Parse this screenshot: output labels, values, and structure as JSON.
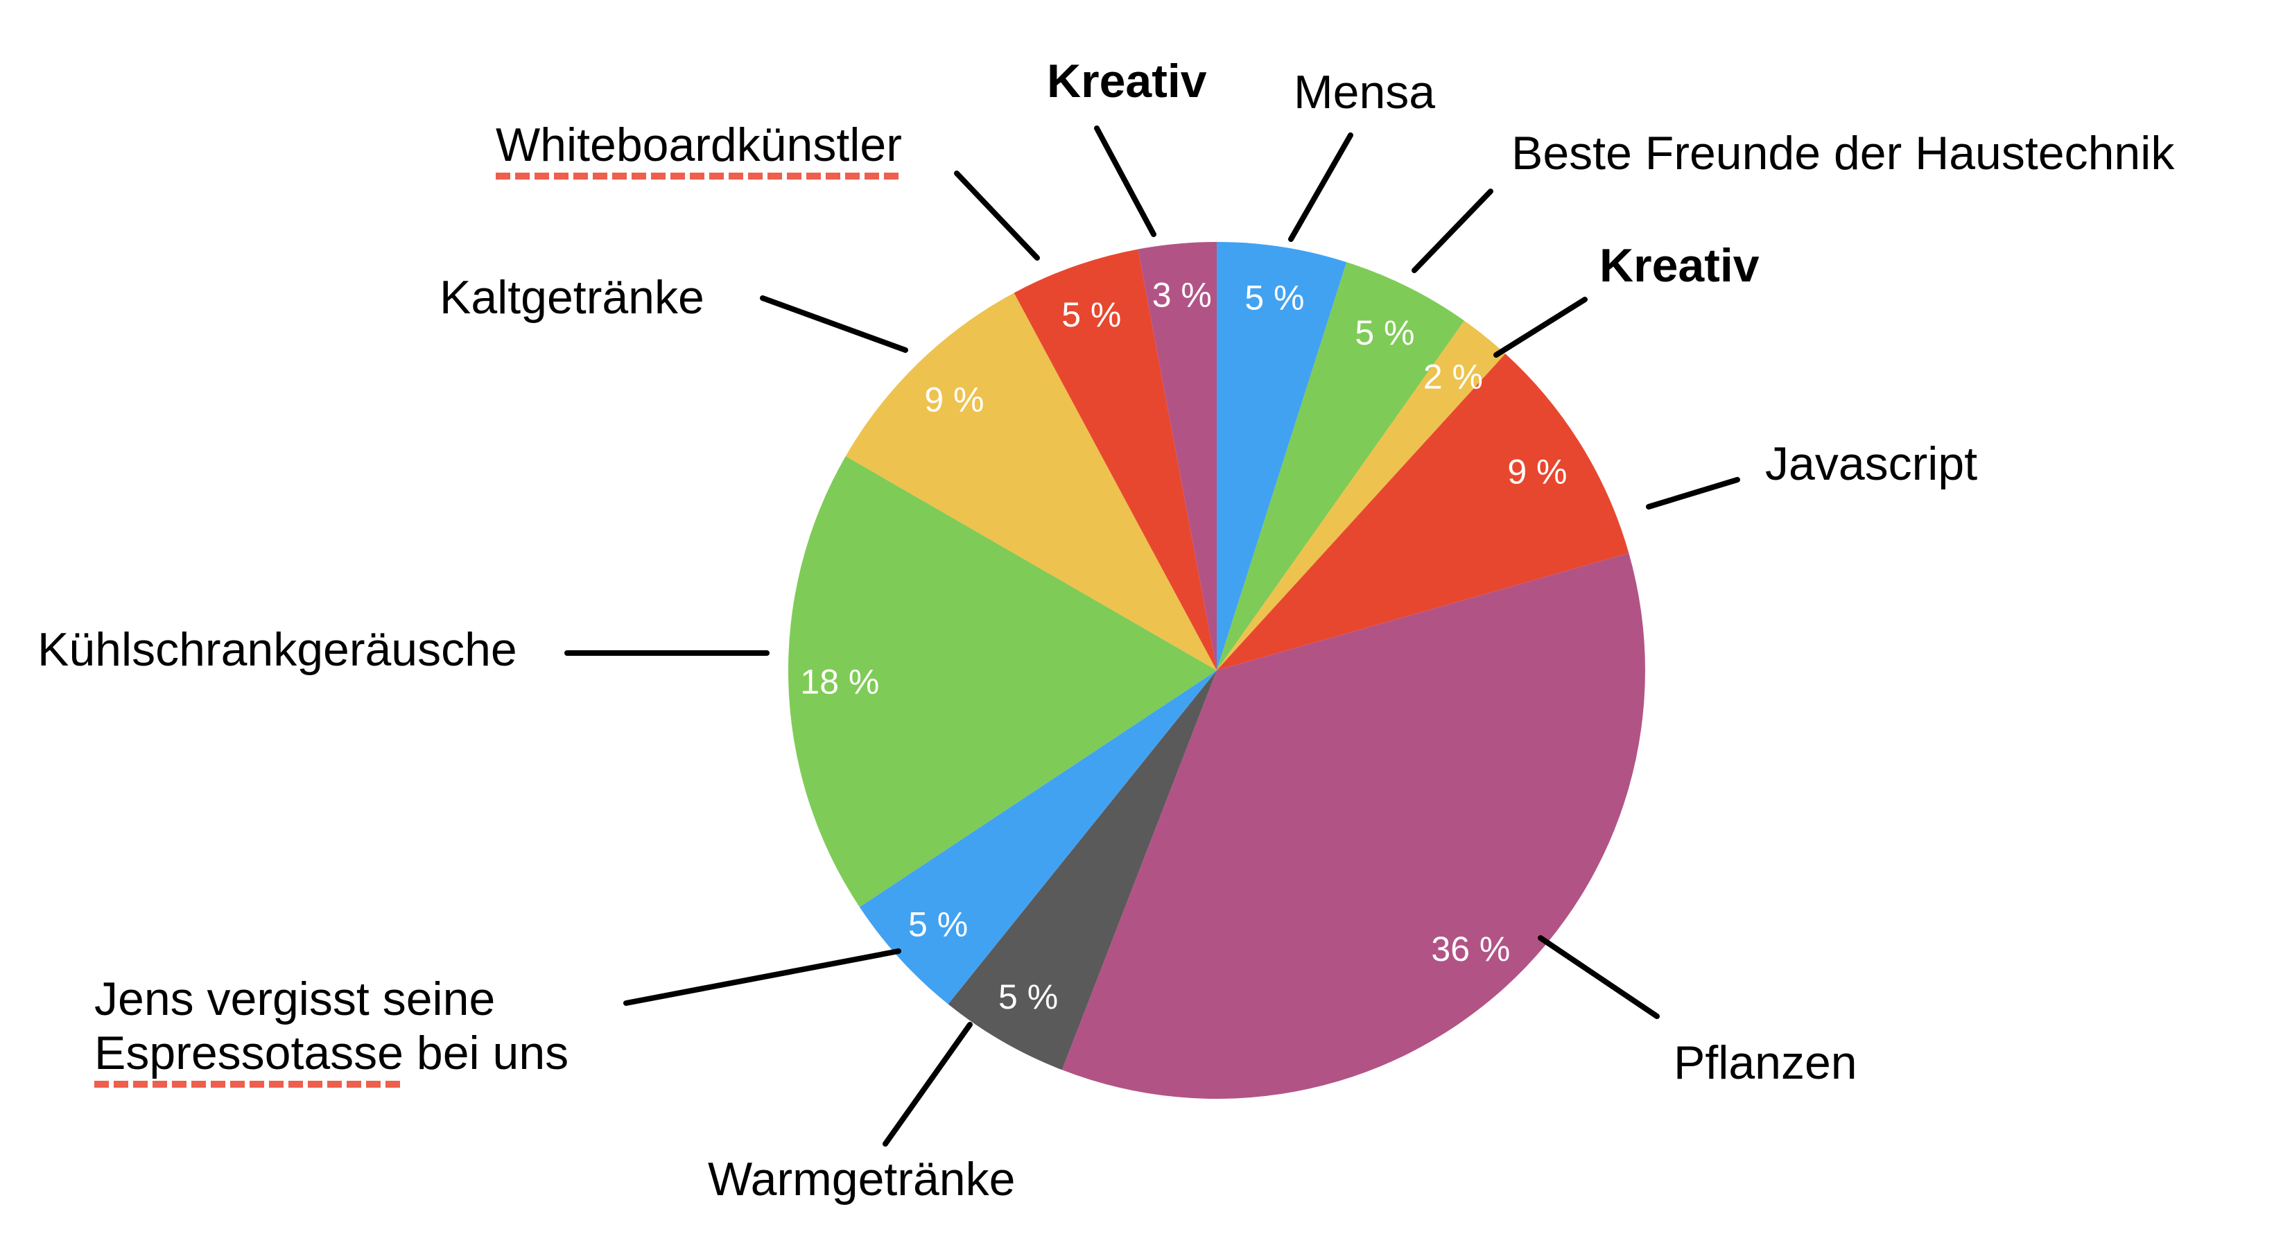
{
  "background": "#ffffff",
  "colors": {
    "leader_line": "#000000",
    "value_label": "#ffffff",
    "spellcheck_underline": "#ee5f4d",
    "blue": "#41A2F2",
    "green": "#7FCB57",
    "yellow": "#EDC24E",
    "red": "#E8472F",
    "magenta": "#B25386",
    "gray": "#5A5A5A"
  },
  "chart_data": {
    "type": "pie",
    "title": "",
    "legend": "none",
    "start_angle_deg": 0,
    "direction": "clockwise",
    "slices": [
      {
        "label": "Mensa",
        "value": 5,
        "pct_label": "5 %",
        "color": "#41A2F2",
        "bold_label": false,
        "spellcheck_underline": false
      },
      {
        "label": "Beste Freunde der Haustechnik",
        "value": 5,
        "pct_label": "5 %",
        "color": "#7FCB57",
        "bold_label": false,
        "spellcheck_underline": false
      },
      {
        "label": "Kreativ",
        "value": 2,
        "pct_label": "2 %",
        "color": "#EDC24E",
        "bold_label": true,
        "spellcheck_underline": false
      },
      {
        "label": "Javascript",
        "value": 9,
        "pct_label": "9 %",
        "color": "#E8472F",
        "bold_label": false,
        "spellcheck_underline": false
      },
      {
        "label": "Pflanzen",
        "value": 36,
        "pct_label": "36 %",
        "color": "#B25386",
        "bold_label": false,
        "spellcheck_underline": false
      },
      {
        "label": "Warmgetränke",
        "value": 5,
        "pct_label": "5 %",
        "color": "#5A5A5A",
        "bold_label": false,
        "spellcheck_underline": false
      },
      {
        "label": "Jens vergisst seine Espressotasse bei uns",
        "value": 5,
        "pct_label": "5 %",
        "color": "#41A2F2",
        "bold_label": false,
        "spellcheck_underline": true
      },
      {
        "label": "Kühlschrankgeräusche",
        "value": 18,
        "pct_label": "18 %",
        "color": "#7FCB57",
        "bold_label": false,
        "spellcheck_underline": false
      },
      {
        "label": "Kaltgetränke",
        "value": 9,
        "pct_label": "9 %",
        "color": "#EDC24E",
        "bold_label": false,
        "spellcheck_underline": false
      },
      {
        "label": "Whiteboardkünstler",
        "value": 5,
        "pct_label": "5 %",
        "color": "#E8472F",
        "bold_label": false,
        "spellcheck_underline": true
      },
      {
        "label": "Kreativ",
        "value": 3,
        "pct_label": "3 %",
        "color": "#B25386",
        "bold_label": true,
        "spellcheck_underline": false
      }
    ]
  },
  "callouts": {
    "whiteboard": "Whiteboardkünstler",
    "kaltgetraenke": "Kaltgetränke",
    "kreativ_top": "Kreativ",
    "mensa": "Mensa",
    "beste_freunde": "Beste Freunde der Haustechnik",
    "kreativ_right": "Kreativ",
    "javascript": "Javascript",
    "pflanzen": "Pflanzen",
    "warmgetraenke": "Warmgetränke",
    "jens_line1": "Jens vergisst seine",
    "jens_underlined": "Espressotasse",
    "jens_line2_rest": " bei uns",
    "kuehlschrank": "Kühlschrankgeräusche"
  }
}
